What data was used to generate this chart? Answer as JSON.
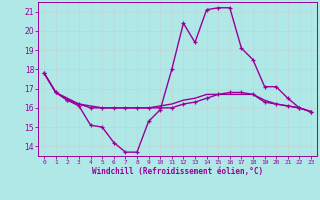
{
  "xlabel": "Windchill (Refroidissement éolien,°C)",
  "background_color": "#b0e8e8",
  "grid_color": "#c8d8d8",
  "line_color": "#990099",
  "hours": [
    0,
    1,
    2,
    3,
    4,
    5,
    6,
    7,
    8,
    9,
    10,
    11,
    12,
    13,
    14,
    15,
    16,
    17,
    18,
    19,
    20,
    21,
    22,
    23
  ],
  "windchill_series": [
    17.8,
    16.8,
    16.4,
    16.1,
    15.1,
    15.0,
    14.2,
    13.7,
    13.7,
    15.3,
    15.9,
    18.0,
    20.4,
    19.4,
    21.1,
    21.2,
    21.2,
    19.1,
    18.5,
    17.1,
    17.1,
    16.5,
    16.0,
    15.8
  ],
  "temp_series": [
    17.8,
    16.8,
    16.4,
    16.2,
    16.0,
    16.0,
    16.0,
    16.0,
    16.0,
    16.0,
    16.0,
    16.0,
    16.2,
    16.3,
    16.5,
    16.7,
    16.8,
    16.8,
    16.7,
    16.3,
    16.2,
    16.1,
    16.0,
    15.8
  ],
  "smooth_series": [
    17.8,
    16.8,
    16.5,
    16.2,
    16.1,
    16.0,
    16.0,
    16.0,
    16.0,
    16.0,
    16.1,
    16.2,
    16.4,
    16.5,
    16.7,
    16.7,
    16.7,
    16.7,
    16.7,
    16.4,
    16.2,
    16.1,
    16.0,
    15.8
  ],
  "ylim": [
    13.5,
    21.5
  ],
  "yticks": [
    14,
    15,
    16,
    17,
    18,
    19,
    20,
    21
  ],
  "xlim": [
    -0.5,
    23.5
  ]
}
